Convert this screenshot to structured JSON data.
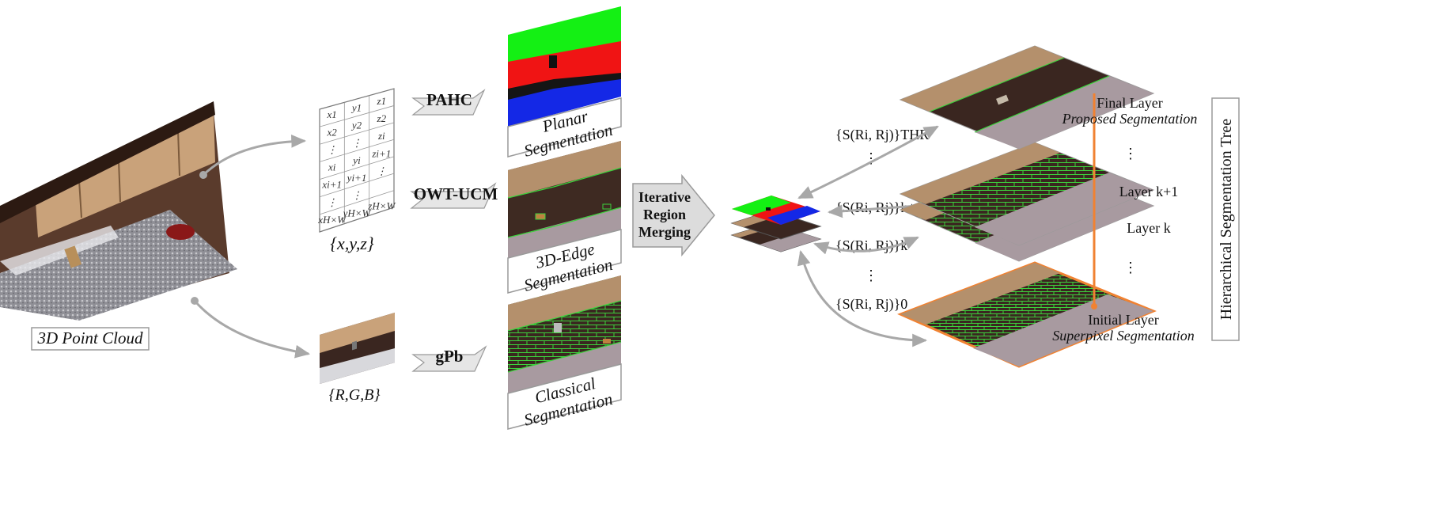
{
  "point_cloud": {
    "label": "3D Point Cloud"
  },
  "xyz": {
    "label": "{x,y,z}",
    "matrix_rows": [
      [
        "x1",
        "y1",
        "z1"
      ],
      [
        "x2",
        "y2",
        "z2"
      ],
      [
        "⋮",
        "⋮",
        "zi"
      ],
      [
        "xi",
        "yi",
        "zi+1"
      ],
      [
        "xi+1",
        "yi+1",
        "⋮"
      ],
      [
        "⋮",
        "⋮",
        ""
      ],
      [
        "xH×W",
        "yH×W",
        "zH×W"
      ]
    ]
  },
  "rgb": {
    "label": "{R,G,B}"
  },
  "methods": [
    {
      "arrow": "PAHC",
      "result": [
        "Planar",
        "Segmentation"
      ]
    },
    {
      "arrow": "OWT-UCM",
      "result": [
        "3D-Edge",
        "Segmentation"
      ]
    },
    {
      "arrow": "gPb",
      "result": [
        "Classical",
        "Segmentation"
      ]
    }
  ],
  "merge": {
    "lines": [
      "Iterative",
      "Region",
      "Merging"
    ]
  },
  "similarity": {
    "thr": "{S(Ri, Rj)}THR",
    "k1": "{S(Ri, Rj)}k+1",
    "k": "{S(Ri, Rj)}k",
    "zero": "{S(Ri, Rj)}0"
  },
  "layers": {
    "final": [
      "Final Layer",
      "Proposed Segmentation"
    ],
    "k1": "Layer k+1",
    "k": "Layer k",
    "initial": [
      "Initial Layer",
      "Superpixel Segmentation"
    ]
  },
  "tree_label": "Hierarchical Segmentation Tree",
  "colors": {
    "wood": "#b4906c",
    "dark": "#3a2620",
    "floor": "#a89aa0",
    "edge_green": "#3cd23c",
    "plane_green": "#14f014",
    "plane_red": "#f01414",
    "plane_blue": "#1428e6",
    "orange": "#f08232",
    "arrow_gray": "#a8a8a8"
  }
}
